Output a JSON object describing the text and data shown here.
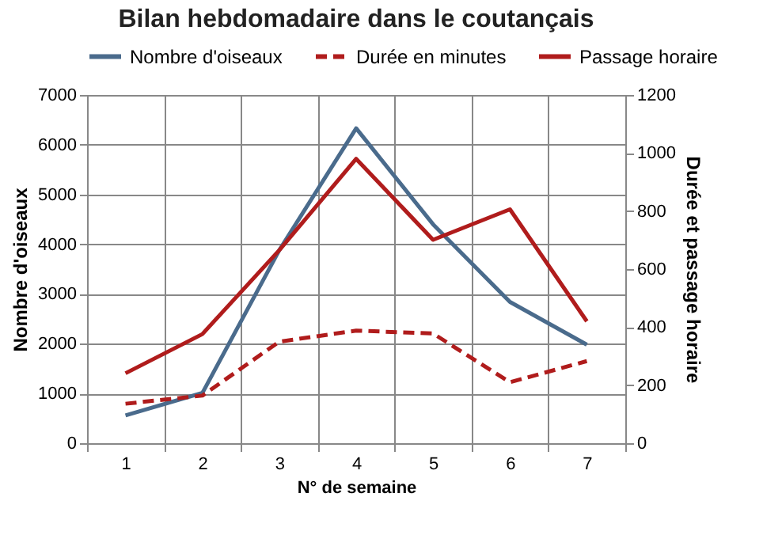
{
  "chart_data": {
    "type": "line",
    "title": "Bilan hebdomadaire dans le coutançais",
    "xlabel": "N° de semaine",
    "ylabel": "Nombre d'oiseaux",
    "y2label": "Durée et passage horaire",
    "categories": [
      "1",
      "2",
      "3",
      "4",
      "5",
      "6",
      "7"
    ],
    "series": [
      {
        "name": "Nombre d'oiseaux",
        "color": "#4a6b8c",
        "values": [
          560,
          1010,
          3880,
          6330,
          4400,
          2840,
          1980
        ]
      },
      {
        "name": "Durée en minutes",
        "color": "#b01c1c",
        "axis": "y2",
        "line_style": "dashed",
        "values": [
          136,
          164,
          350,
          388,
          378,
          210,
          283
        ]
      },
      {
        "name": "Passage horaire",
        "color": "#b01c1c",
        "axis": "y2",
        "values": [
          241,
          376,
          665,
          980,
          701,
          806,
          420
        ]
      }
    ],
    "ylim": [
      0,
      7000
    ],
    "yticks": [
      0,
      1000,
      2000,
      3000,
      4000,
      5000,
      6000,
      7000
    ],
    "y2lim": [
      0,
      1200
    ],
    "y2ticks": [
      0,
      200,
      400,
      600,
      800,
      1000,
      1200
    ],
    "grid": true,
    "legend": "top",
    "marker": "none",
    "line_style": "solid"
  }
}
